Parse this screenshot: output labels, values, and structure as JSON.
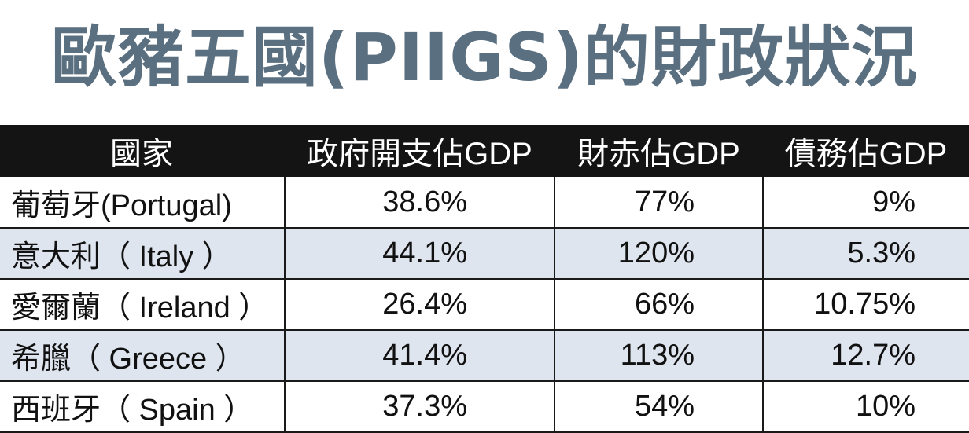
{
  "chart_data": {
    "type": "table",
    "title": "歐豬五國(PIIGS)的財政狀況",
    "columns": [
      "國家",
      "政府開支佔GDP",
      "財赤佔GDP",
      "債務佔GDP"
    ],
    "rows": [
      {
        "country": "葡萄牙(Portugal)",
        "spending": "38.6%",
        "deficit": "77%",
        "debt": "9%"
      },
      {
        "country": "意大利（ Italy ）",
        "spending": "44.1%",
        "deficit": "120%",
        "debt": "5.3%"
      },
      {
        "country": "愛爾蘭（ Ireland ）",
        "spending": "26.4%",
        "deficit": "66%",
        "debt": "10.75%"
      },
      {
        "country": "希臘（ Greece ）",
        "spending": "41.4%",
        "deficit": "113%",
        "debt": "12.7%"
      },
      {
        "country": "西班牙（ Spain ）",
        "spending": "37.3%",
        "deficit": "54%",
        "debt": "10%"
      }
    ]
  },
  "colors": {
    "title": "#5a6f80",
    "header_bg": "#141414",
    "header_text": "#ffffff",
    "stripe": "#dfe5ee"
  }
}
